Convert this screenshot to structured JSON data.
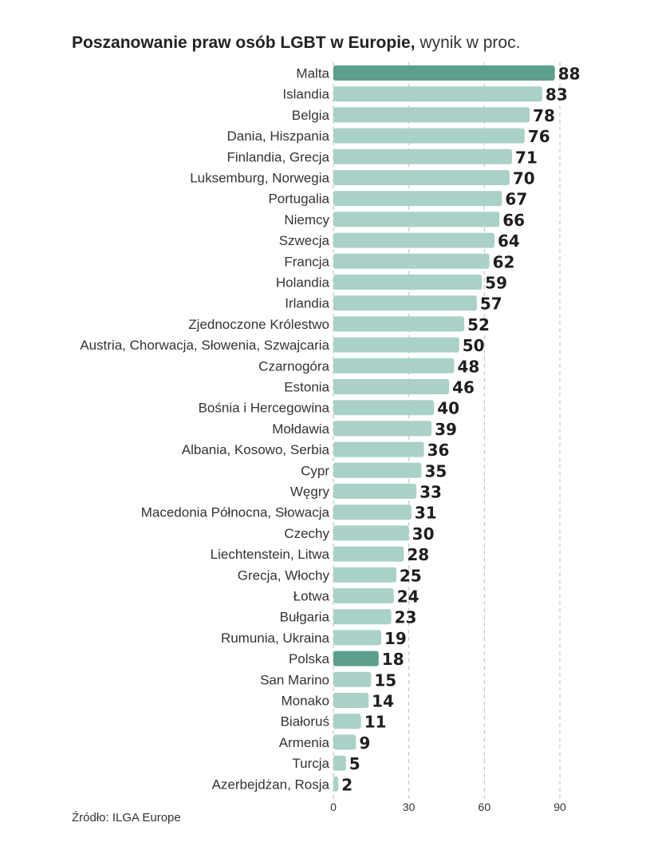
{
  "title": {
    "bold": "Poszanowanie praw osób LGBT w Europie,",
    "light": "wynik w proc."
  },
  "source": "Źródło: ILGA Europe",
  "colors": {
    "bar": "#a9d1c7",
    "highlight": "#5c9f8e",
    "grid": "#bbbbbb",
    "label": "#333333",
    "value": "#1e1e1e"
  },
  "chart_data": {
    "type": "bar",
    "orientation": "horizontal",
    "categories": [
      "Malta",
      "Islandia",
      "Belgia",
      "Dania, Hiszpania",
      "Finlandia, Grecja",
      "Luksemburg, Norwegia",
      "Portugalia",
      "Niemcy",
      "Szwecja",
      "Francja",
      "Holandia",
      "Irlandia",
      "Zjednoczone Królestwo",
      "Austria, Chorwacja, Słowenia, Szwajcaria",
      "Czarnogóra",
      "Estonia",
      "Bośnia i Hercegowina",
      "Mołdawia",
      "Albania, Kosowo, Serbia",
      "Cypr",
      "Węgry",
      "Macedonia Północna, Słowacja",
      "Czechy",
      "Liechtenstein, Litwa",
      "Grecja, Włochy",
      "Łotwa",
      "Bułgaria",
      "Rumunia, Ukraina",
      "Polska",
      "San Marino",
      "Monako",
      "Białoruś",
      "Armenia",
      "Turcja",
      "Azerbejdżan, Rosja"
    ],
    "values": [
      88,
      83,
      78,
      76,
      71,
      70,
      67,
      66,
      64,
      62,
      59,
      57,
      52,
      50,
      48,
      46,
      40,
      39,
      36,
      35,
      33,
      31,
      30,
      28,
      25,
      24,
      23,
      19,
      18,
      15,
      14,
      11,
      9,
      5,
      2
    ],
    "highlighted": [
      "Malta",
      "Polska"
    ],
    "xlim": [
      0,
      90
    ],
    "xticks": [
      0,
      30,
      60,
      90
    ],
    "grid": "vertical dashed"
  }
}
